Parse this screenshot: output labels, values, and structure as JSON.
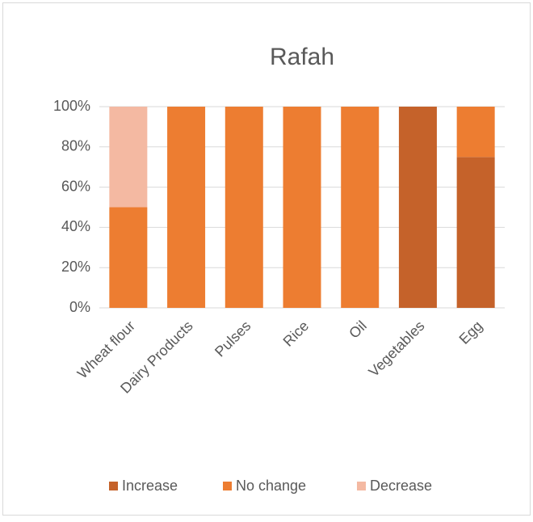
{
  "chart_data": {
    "type": "stacked_bar",
    "title": "Rafah",
    "categories": [
      "Wheat flour",
      "Dairy Products",
      "Pulses",
      "Rice",
      "Oil",
      "Vegetables",
      "Egg"
    ],
    "series": [
      {
        "name": "Increase",
        "color": "#c5622a",
        "values": [
          0,
          0,
          0,
          0,
          0,
          100,
          75
        ]
      },
      {
        "name": "No change",
        "color": "#ed7d31",
        "values": [
          50,
          100,
          100,
          100,
          100,
          0,
          25
        ]
      },
      {
        "name": "Decrease",
        "color": "#f4b9a2",
        "values": [
          50,
          0,
          0,
          0,
          0,
          0,
          0
        ]
      }
    ],
    "ylim": [
      0,
      100
    ],
    "yticks": [
      {
        "value": 0,
        "label": "0%"
      },
      {
        "value": 20,
        "label": "20%"
      },
      {
        "value": 40,
        "label": "40%"
      },
      {
        "value": 60,
        "label": "60%"
      },
      {
        "value": 80,
        "label": "80%"
      },
      {
        "value": 100,
        "label": "100%"
      }
    ],
    "grid": true,
    "legend": "bottom"
  }
}
